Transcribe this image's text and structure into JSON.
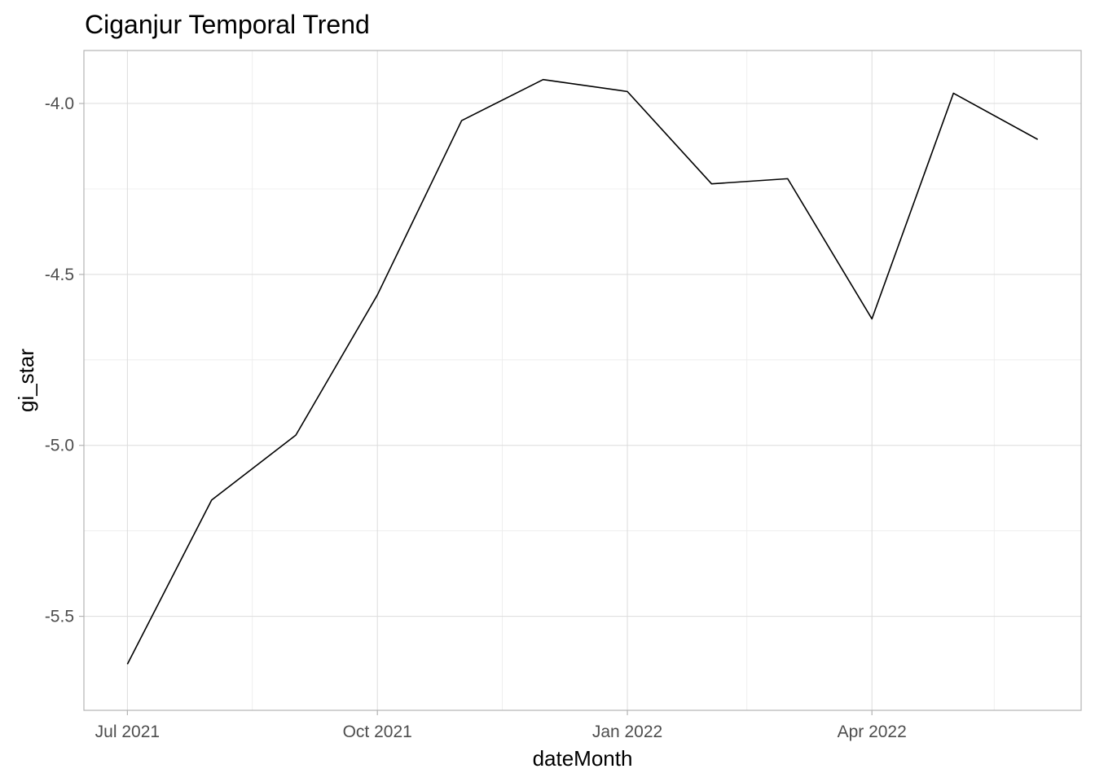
{
  "chart_data": {
    "type": "line",
    "title": "Ciganjur Temporal Trend",
    "xlabel": "dateMonth",
    "ylabel": "gi_star",
    "x": [
      "2021-07-01",
      "2021-08-01",
      "2021-09-01",
      "2021-10-01",
      "2021-11-01",
      "2021-12-01",
      "2022-01-01",
      "2022-02-01",
      "2022-03-01",
      "2022-04-01",
      "2022-05-01",
      "2022-06-01"
    ],
    "series": [
      {
        "values": [
          -5.64,
          -5.16,
          -4.97,
          -4.56,
          -4.05,
          -3.93,
          -3.965,
          -4.235,
          -4.22,
          -4.63,
          -3.97,
          -4.105
        ]
      }
    ],
    "x_ticks": [
      {
        "date": "2021-07-01",
        "label": "Jul 2021"
      },
      {
        "date": "2021-10-01",
        "label": "Oct 2021"
      },
      {
        "date": "2022-01-01",
        "label": "Jan 2022"
      },
      {
        "date": "2022-04-01",
        "label": "Apr 2022"
      }
    ],
    "x_minor_ticks": [
      "2021-08-16",
      "2021-11-16",
      "2022-02-14",
      "2022-05-16"
    ],
    "y_ticks": [
      {
        "value": -5.5,
        "label": "-5.5"
      },
      {
        "value": -5.0,
        "label": "-5.0"
      },
      {
        "value": -4.5,
        "label": "-4.5"
      },
      {
        "value": -4.0,
        "label": "-4.0"
      }
    ],
    "y_minor_ticks": [
      -5.25,
      -4.75,
      -4.25
    ],
    "xlim": [
      "2021-06-15",
      "2022-06-17"
    ],
    "ylim": [
      -5.775,
      -3.845
    ],
    "grid": true,
    "legend": "none",
    "colors": {
      "line": "#000000",
      "grid_major": "#dcdcdc",
      "grid_minor": "#ebebeb",
      "panel_border": "#b3b3b3",
      "tick_text": "#4d4d4d"
    }
  }
}
